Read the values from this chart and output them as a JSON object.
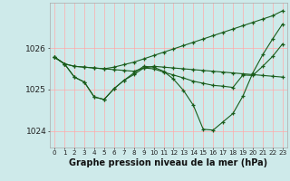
{
  "background_color": "#ceeaea",
  "grid_color": "#ffaaaa",
  "line_color": "#1a5c1a",
  "title": "Graphe pression niveau de la mer (hPa)",
  "title_fontsize": 7,
  "ylabel_values": [
    1024,
    1025,
    1026
  ],
  "ytick_fontsize": 6.5,
  "xtick_fontsize": 5.2,
  "xlim": [
    -0.5,
    23.5
  ],
  "ylim": [
    1023.6,
    1027.1
  ],
  "series": [
    {
      "y": [
        1025.78,
        1025.62,
        1025.56,
        1025.54,
        1025.52,
        1025.5,
        1025.48,
        1025.46,
        1025.44,
        1025.52,
        1025.56,
        1025.54,
        1025.52,
        1025.5,
        1025.48,
        1025.46,
        1025.44,
        1025.42,
        1025.4,
        1025.38,
        1025.36,
        1025.34,
        1025.32,
        1025.3
      ]
    },
    {
      "y": [
        1025.78,
        1025.62,
        1025.3,
        1025.18,
        1024.82,
        1024.76,
        1025.02,
        1025.22,
        1025.36,
        1025.52,
        1025.5,
        1025.42,
        1025.35,
        1025.28,
        1025.2,
        1025.15,
        1025.1,
        1025.08,
        1025.05,
        1025.35,
        1025.34,
        1025.56,
        1025.8,
        1026.1
      ]
    },
    {
      "y": [
        1025.78,
        1025.62,
        1025.3,
        1025.18,
        1024.82,
        1024.76,
        1025.02,
        1025.22,
        1025.4,
        1025.56,
        1025.54,
        1025.44,
        1025.25,
        1024.98,
        1024.62,
        1024.04,
        1024.02,
        1024.22,
        1024.42,
        1024.84,
        1025.4,
        1025.84,
        1026.22,
        1026.58
      ]
    },
    {
      "y": [
        1025.78,
        1025.62,
        1025.56,
        1025.54,
        1025.52,
        1025.5,
        1025.54,
        1025.6,
        1025.66,
        1025.74,
        1025.82,
        1025.9,
        1025.98,
        1026.06,
        1026.14,
        1026.22,
        1026.3,
        1026.38,
        1026.46,
        1026.54,
        1026.62,
        1026.7,
        1026.78,
        1026.9
      ]
    }
  ],
  "x_ticks": [
    0,
    1,
    2,
    3,
    4,
    5,
    6,
    7,
    8,
    9,
    10,
    11,
    12,
    13,
    14,
    15,
    16,
    17,
    18,
    19,
    20,
    21,
    22,
    23
  ]
}
